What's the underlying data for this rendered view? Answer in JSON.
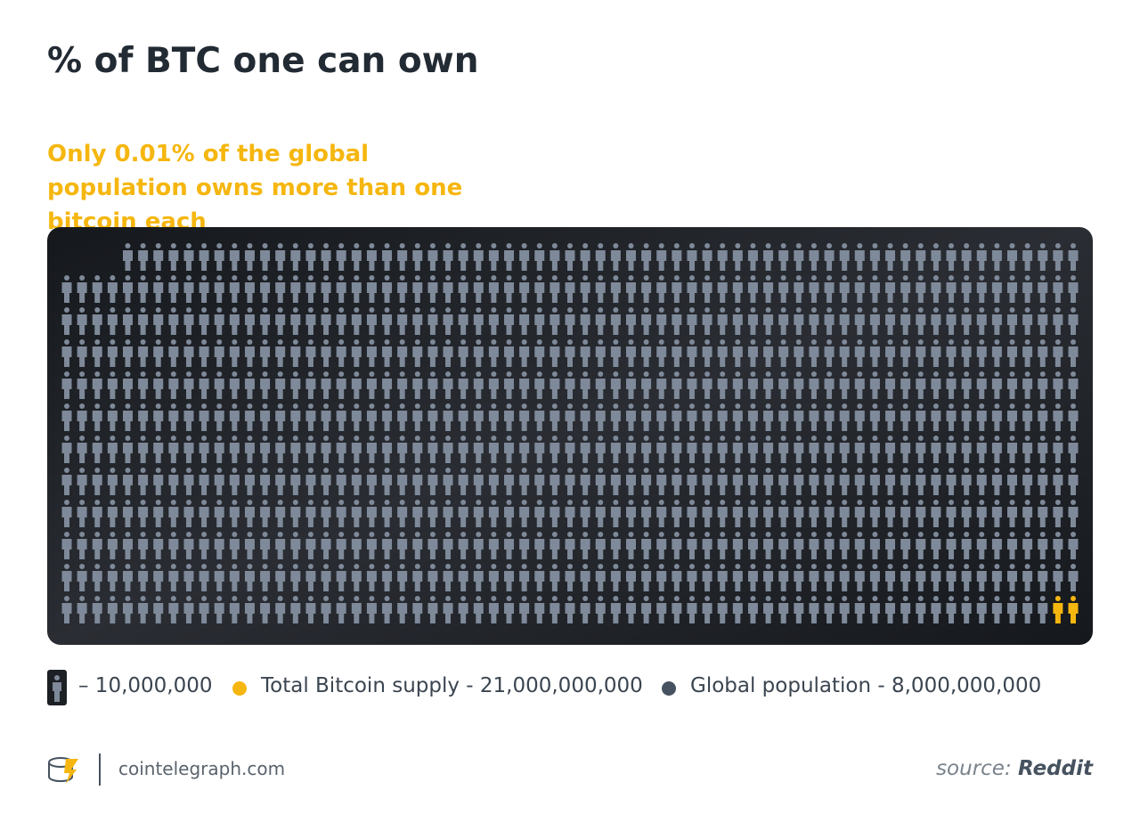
{
  "chart_data": {
    "type": "pictogram",
    "title": "% of BTC one can own",
    "subtitle": "Only 0.01% of the global population owns more than one bitcoin each",
    "unit": {
      "value": 10000000,
      "label": "– 10,000,000"
    },
    "series": [
      {
        "name": "Total Bitcoin supply - 21,000,000,000",
        "color": "#f5b60f"
      },
      {
        "name": "Global population - 8,000,000,000",
        "color": "#46525f",
        "value": 8000000000
      }
    ],
    "highlight_count": 2,
    "icon_color": "#7e8999"
  },
  "footer": {
    "site": "cointelegraph.com",
    "source_label": "source:",
    "source": "Reddit"
  }
}
